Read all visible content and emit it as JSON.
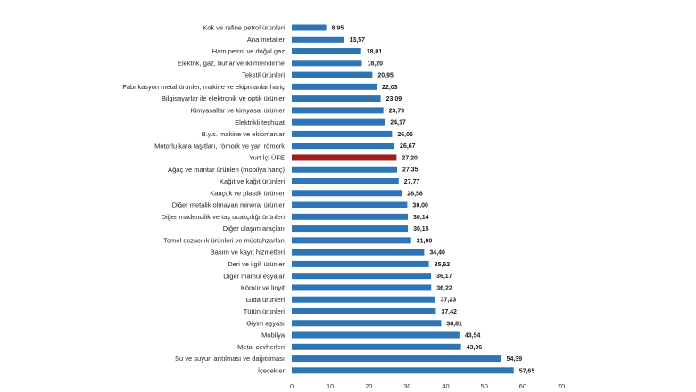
{
  "chart_data": {
    "type": "bar",
    "orientation": "horizontal",
    "categories": [
      "Kok ve rafine petrol ürünleri",
      "Ana metaller",
      "Ham petrol ve doğal gaz",
      "Elektrik, gaz, buhar ve iklimlendirme",
      "Tekstil ürünleri",
      "Fabrikasyon metal ürünler, makine ve ekipmanlar hariç",
      "Bilgisayarlar ile elektronik ve optik ürünler",
      "Kimyasallar ve kimyasal ürünler",
      "Elektrikli teçhizat",
      "B.y.s. makine ve ekipmanlar",
      "Motorlu kara taşıtları, römork ve yarı römork",
      "Yurt İçi ÜFE",
      "Ağaç ve mantar ürünleri (mobilya hariç)",
      "Kağıt ve kağıt ürünleri",
      "Kauçuk ve plastik ürünler",
      "Diğer metalik olmayan mineral ürünler",
      "Diğer madencilik ve taş ocakçılığı ürünleri",
      "Diğer ulaşım araçları",
      "Temel eczacılık ürünleri ve müstahzarları",
      "Basım ve kayıt hizmetleri",
      "Deri ve ilgili ürünler",
      "Diğer mamul eşyalar",
      "Kömür ve linyit",
      "Gıda ürünleri",
      "Tütün ürünleri",
      "Giyim eşyası",
      "Mobilya",
      "Metal cevherleri",
      "Su ve suyun arıtılması ve dağıtılması",
      "İçecekler"
    ],
    "values": [
      8.95,
      13.57,
      18.01,
      18.2,
      20.95,
      22.03,
      23.09,
      23.79,
      24.17,
      26.05,
      26.67,
      27.2,
      27.35,
      27.77,
      28.58,
      30.0,
      30.14,
      30.15,
      31.0,
      34.4,
      35.62,
      36.17,
      36.22,
      37.23,
      37.42,
      38.81,
      43.54,
      43.96,
      54.39,
      57.65
    ],
    "value_labels": [
      "8,95",
      "13,57",
      "18,01",
      "18,20",
      "20,95",
      "22,03",
      "23,09",
      "23,79",
      "24,17",
      "26,05",
      "26,67",
      "27,20",
      "27,35",
      "27,77",
      "28,58",
      "30,00",
      "30,14",
      "30,15",
      "31,00",
      "34,40",
      "35,62",
      "36,17",
      "36,22",
      "37,23",
      "37,42",
      "38,81",
      "43,54",
      "43,96",
      "54,39",
      "57,65"
    ],
    "highlight_category": "Yurt İçi ÜFE",
    "colors": {
      "bar": "#2e75b6",
      "highlight": "#a01c1c"
    },
    "xlim": [
      0,
      70
    ],
    "xticks": [
      "0",
      "10",
      "20",
      "30",
      "40",
      "50",
      "60",
      "70"
    ],
    "grid": false,
    "title": "",
    "xlabel": "",
    "ylabel": ""
  }
}
